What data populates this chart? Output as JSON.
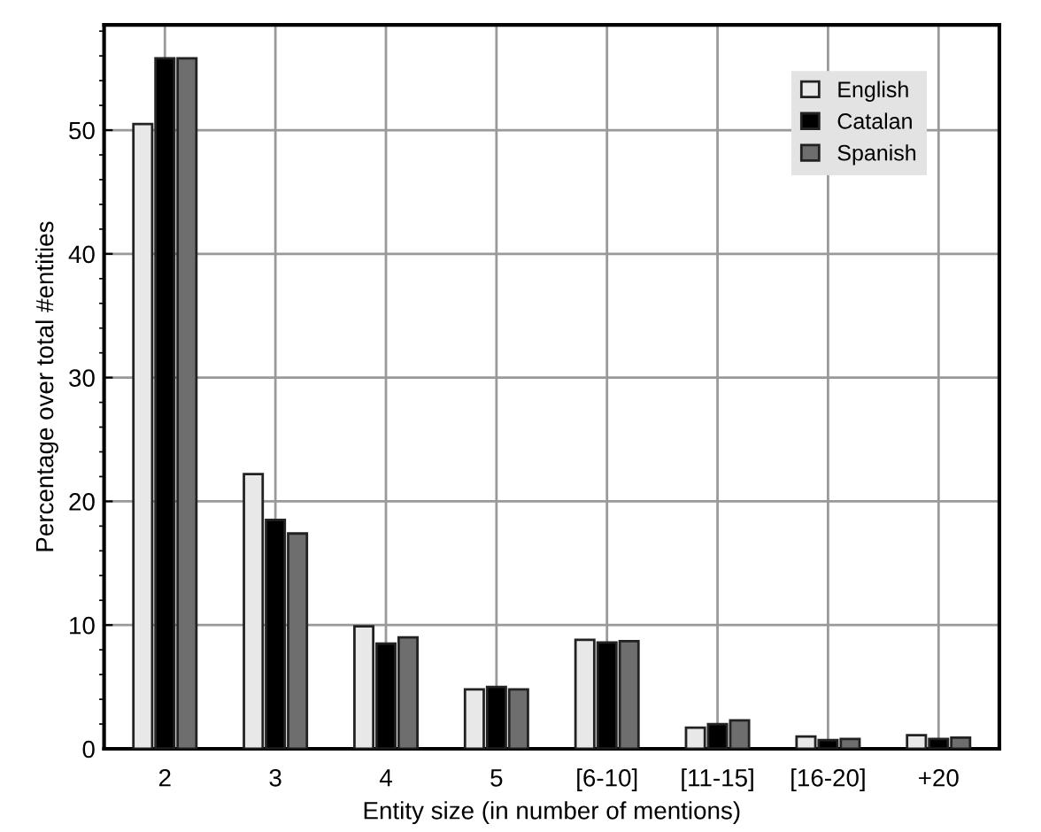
{
  "chart_data": {
    "type": "bar",
    "xlabel": "Entity size (in number of mentions)",
    "ylabel": "Percentage over total #entities",
    "categories": [
      "2",
      "3",
      "4",
      "5",
      "[6-10]",
      "[11-15]",
      "[16-20]",
      "+20"
    ],
    "series": [
      {
        "name": "English",
        "color": "#e8e8e8",
        "values": [
          50.5,
          22.2,
          9.9,
          4.8,
          8.8,
          1.7,
          1.0,
          1.1
        ]
      },
      {
        "name": "Catalan",
        "color": "#000000",
        "values": [
          55.8,
          18.5,
          8.5,
          5.0,
          8.6,
          2.0,
          0.7,
          0.8
        ]
      },
      {
        "name": "Spanish",
        "color": "#6e6e6e",
        "values": [
          55.8,
          17.4,
          9.0,
          4.8,
          8.7,
          2.3,
          0.8,
          0.9
        ]
      }
    ],
    "ylim": [
      0,
      58.5
    ],
    "yticks": [
      0,
      10,
      20,
      30,
      40,
      50
    ],
    "grid": true,
    "legend": "top right"
  }
}
